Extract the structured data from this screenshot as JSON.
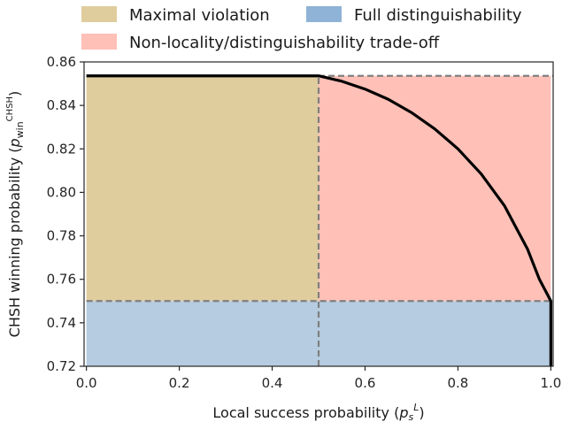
{
  "chart_data": {
    "type": "area",
    "xlabel": "Local success probability (",
    "xlabel_var": "p",
    "xlabel_sub": "s",
    "xlabel_sup": "L",
    "xlabel_close": ")",
    "ylabel": "CHSH winning probability (",
    "ylabel_var": "p",
    "ylabel_sub": "win",
    "ylabel_sup": "CHSH",
    "ylabel_close": ")",
    "xlim": [
      -0.005,
      1.005
    ],
    "ylim": [
      0.72,
      0.86
    ],
    "x_ticks": [
      0.0,
      0.2,
      0.4,
      0.6,
      0.8,
      1.0
    ],
    "x_tick_labels": [
      "0.0",
      "0.2",
      "0.4",
      "0.6",
      "0.8",
      "1.0"
    ],
    "y_ticks": [
      0.72,
      0.74,
      0.76,
      0.78,
      0.8,
      0.82,
      0.84,
      0.86
    ],
    "y_tick_labels": [
      "0.72",
      "0.74",
      "0.76",
      "0.78",
      "0.80",
      "0.82",
      "0.84",
      "0.86"
    ],
    "grid": false,
    "legend_position": "top",
    "regions": [
      {
        "label": "Maximal violation",
        "color": "#e0cd9e",
        "x": [
          0.0,
          0.5
        ],
        "y": [
          0.75,
          0.8536
        ]
      },
      {
        "label": "Full distinguishability",
        "color": "#b6cce0",
        "x": [
          0.0,
          1.0
        ],
        "y": [
          0.72,
          0.75
        ]
      },
      {
        "label": "Non-locality/distinguishability trade-off",
        "color": "#ffc0b8",
        "x": [
          0.5,
          1.0
        ],
        "y": [
          0.75,
          0.8536
        ]
      }
    ],
    "legend_items": [
      {
        "label": "Maximal violation",
        "color": "#e0cd9e"
      },
      {
        "label": "Full distinguishability",
        "color": "#8fb3d6"
      },
      {
        "label": "Non-locality/distinguishability trade-off",
        "color": "#ffc0b8"
      }
    ],
    "boundary_curve": {
      "color": "#000000",
      "points": [
        [
          0.0,
          0.8536
        ],
        [
          0.5,
          0.8536
        ],
        [
          0.55,
          0.8511
        ],
        [
          0.6,
          0.8475
        ],
        [
          0.65,
          0.8428
        ],
        [
          0.7,
          0.8367
        ],
        [
          0.75,
          0.8292
        ],
        [
          0.8,
          0.82
        ],
        [
          0.85,
          0.8085
        ],
        [
          0.9,
          0.7939
        ],
        [
          0.95,
          0.7738
        ],
        [
          0.975,
          0.7602
        ],
        [
          1.0,
          0.75
        ],
        [
          1.0,
          0.72
        ]
      ]
    },
    "dashed_lines": [
      {
        "color": "#808080",
        "points": [
          [
            0.0,
            0.75
          ],
          [
            1.005,
            0.75
          ]
        ]
      },
      {
        "color": "#808080",
        "points": [
          [
            0.5,
            0.8536
          ],
          [
            1.005,
            0.8536
          ]
        ]
      },
      {
        "color": "#808080",
        "points": [
          [
            0.5,
            0.72
          ],
          [
            0.5,
            0.8536
          ]
        ]
      }
    ]
  }
}
